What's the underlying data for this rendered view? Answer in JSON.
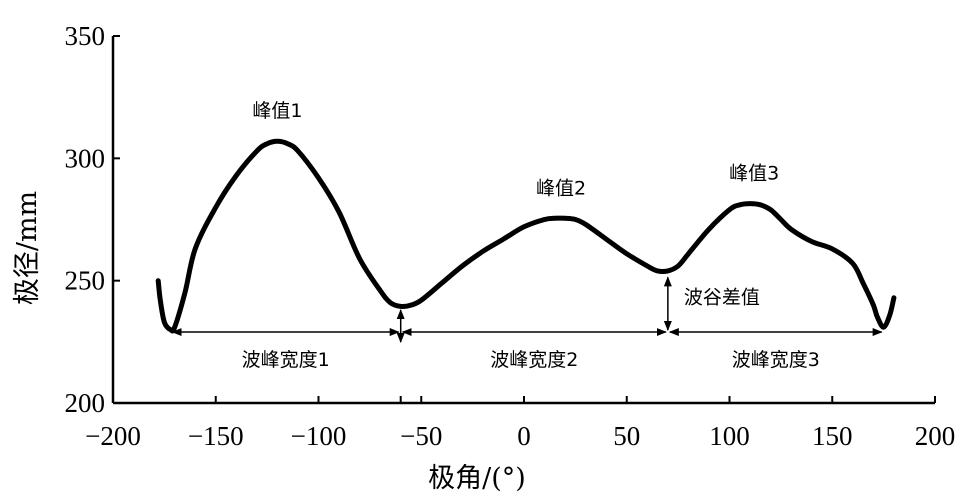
{
  "chart_data": {
    "type": "line",
    "title": "",
    "xlabel": "极角/(°)",
    "ylabel": "极径/mm",
    "xlim": [
      -200,
      200
    ],
    "ylim": [
      200,
      350
    ],
    "xticks": [
      -200,
      -150,
      -100,
      -50,
      0,
      50,
      100,
      150,
      200
    ],
    "yticks": [
      200,
      250,
      300,
      350
    ],
    "xtick_labels": [
      "−200",
      "−150",
      "−100",
      "−50",
      "0",
      "50",
      "100",
      "150",
      "200"
    ],
    "ytick_labels": [
      "200",
      "250",
      "300",
      "350"
    ],
    "grid": false,
    "series": [
      {
        "x": [
          -178,
          -177,
          -175,
          -172,
          -170,
          -165,
          -160,
          -150,
          -140,
          -130,
          -125,
          -120,
          -115,
          -110,
          -100,
          -90,
          -80,
          -70,
          -65,
          -60,
          -55,
          -50,
          -40,
          -30,
          -20,
          -10,
          0,
          10,
          15,
          20,
          25,
          30,
          40,
          50,
          60,
          65,
          70,
          75,
          80,
          90,
          100,
          105,
          110,
          115,
          120,
          125,
          130,
          140,
          150,
          160,
          165,
          170,
          172,
          175,
          178,
          180
        ],
        "y": [
          250,
          242,
          233,
          230,
          231,
          245,
          263,
          280,
          293,
          303,
          306,
          307,
          306,
          303,
          292,
          278,
          259,
          246,
          241,
          239.5,
          240,
          242,
          249,
          256,
          262,
          267,
          272,
          275,
          275.5,
          275.5,
          275,
          273,
          267,
          261,
          256,
          254,
          254,
          256,
          261,
          271,
          279,
          281,
          281.5,
          281,
          279,
          275,
          271,
          266,
          263,
          257,
          249,
          240,
          235,
          231,
          236,
          243
        ]
      }
    ],
    "annotations": {
      "peaks": [
        {
          "label": "峰值1",
          "x": -120,
          "y": 307
        },
        {
          "label": "峰值2",
          "x": 18,
          "y": 275.5
        },
        {
          "label": "峰值3",
          "x": 112,
          "y": 281.5
        }
      ],
      "widths": [
        {
          "label": "波峰宽度1",
          "x_start": -172,
          "x_end": -60,
          "y": 229
        },
        {
          "label": "波峰宽度2",
          "x_start": -60,
          "x_end": 70,
          "y": 229
        },
        {
          "label": "波峰宽度3",
          "x_start": 70,
          "x_end": 175,
          "y": 229
        }
      ],
      "trough_diff": {
        "label": "波谷差值",
        "x": 70,
        "y_top": 253,
        "y_bottom": 229
      },
      "extra_ticks_x": [
        -60
      ]
    }
  }
}
